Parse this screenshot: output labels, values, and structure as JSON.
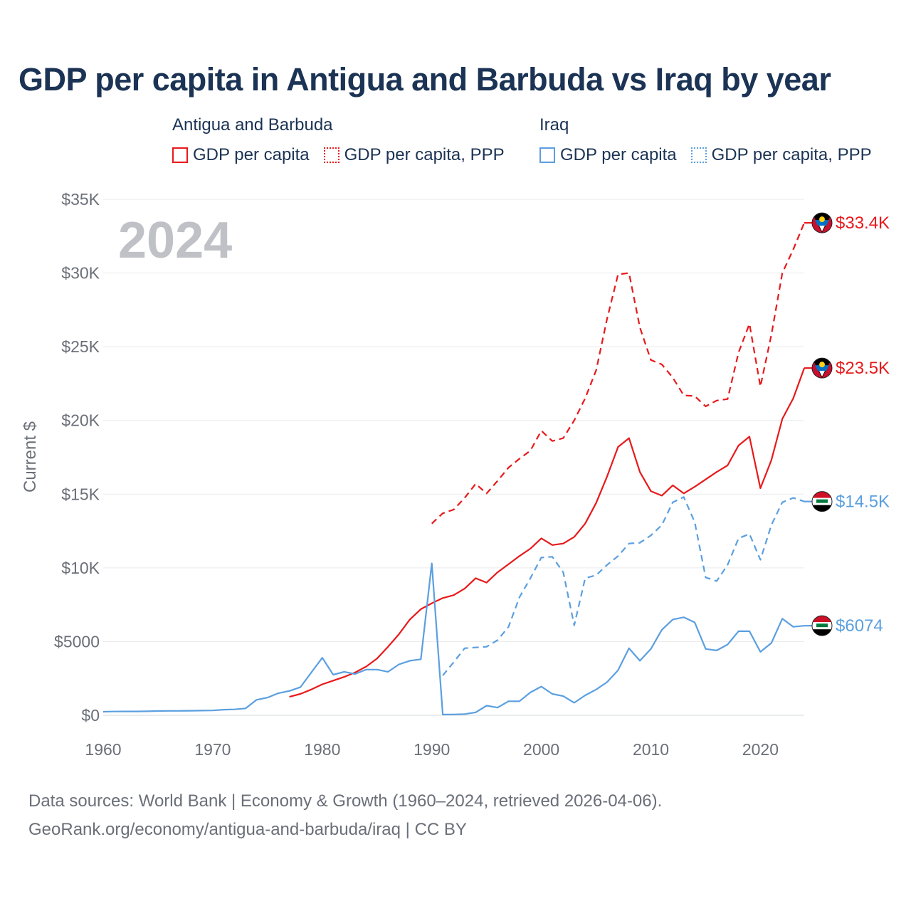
{
  "title": "GDP per capita in Antigua and Barbuda vs Iraq by year",
  "legend": {
    "groups": [
      {
        "name": "Antigua and Barbuda",
        "items": [
          {
            "label": "GDP per capita",
            "style": "solid",
            "color": "#e8191b"
          },
          {
            "label": "GDP per capita, PPP",
            "style": "dotted",
            "color": "#e8191b"
          }
        ]
      },
      {
        "name": "Iraq",
        "items": [
          {
            "label": "GDP per capita",
            "style": "solid",
            "color": "#5b9fe0"
          },
          {
            "label": "GDP per capita, PPP",
            "style": "dotted",
            "color": "#5b9fe0"
          }
        ]
      }
    ]
  },
  "footer": {
    "line1": "Data sources: World Bank | Economy & Growth (1960–2024, retrieved 2026-04-06).",
    "line2": "GeoRank.org/economy/antigua-and-barbuda/iraq | CC BY"
  },
  "chart_data": {
    "type": "line",
    "title": "GDP per capita in Antigua and Barbuda vs Iraq by year",
    "watermark_year": "2024",
    "xlabel": "",
    "ylabel": "Current $",
    "xlim": [
      1960,
      2024
    ],
    "ylim": [
      0,
      35000
    ],
    "x_ticks": [
      1960,
      1970,
      1980,
      1990,
      2000,
      2010,
      2020
    ],
    "y_ticks": [
      {
        "value": 0,
        "label": "$0"
      },
      {
        "value": 5000,
        "label": "$5000"
      },
      {
        "value": 10000,
        "label": "$10K"
      },
      {
        "value": 15000,
        "label": "$15K"
      },
      {
        "value": 20000,
        "label": "$20K"
      },
      {
        "value": 25000,
        "label": "$25K"
      },
      {
        "value": 30000,
        "label": "$30K"
      },
      {
        "value": 35000,
        "label": "$35K"
      }
    ],
    "grid": true,
    "series": [
      {
        "name": "Antigua and Barbuda GDP per capita",
        "country": "Antigua and Barbuda",
        "color": "#e8191b",
        "dash": "solid",
        "end_label": "$23.5K",
        "flag": "antigua",
        "x": [
          1977,
          1978,
          1979,
          1980,
          1981,
          1982,
          1983,
          1984,
          1985,
          1986,
          1987,
          1988,
          1989,
          1990,
          1991,
          1992,
          1993,
          1994,
          1995,
          1996,
          1997,
          1998,
          1999,
          2000,
          2001,
          2002,
          2003,
          2004,
          2005,
          2006,
          2007,
          2008,
          2009,
          2010,
          2011,
          2012,
          2013,
          2014,
          2015,
          2016,
          2017,
          2018,
          2019,
          2020,
          2021,
          2022,
          2023,
          2024
        ],
        "values": [
          1250,
          1450,
          1750,
          2100,
          2350,
          2600,
          2900,
          3300,
          3850,
          4650,
          5500,
          6500,
          7200,
          7600,
          7950,
          8150,
          8600,
          9300,
          9000,
          9700,
          10250,
          10800,
          11300,
          12000,
          11550,
          11650,
          12100,
          13000,
          14400,
          16200,
          18200,
          18800,
          16500,
          15200,
          14900,
          15600,
          15050,
          15500,
          16000,
          16500,
          16950,
          18300,
          18900,
          15400,
          17300,
          20100,
          21500,
          23550
        ]
      },
      {
        "name": "Antigua and Barbuda GDP per capita, PPP",
        "country": "Antigua and Barbuda",
        "color": "#e8191b",
        "dash": "dashed",
        "end_label": "$33.4K",
        "flag": "antigua",
        "x": [
          1990,
          1991,
          1992,
          1993,
          1994,
          1995,
          1996,
          1997,
          1998,
          1999,
          2000,
          2001,
          2002,
          2003,
          2004,
          2005,
          2006,
          2007,
          2008,
          2009,
          2010,
          2011,
          2012,
          2013,
          2014,
          2015,
          2016,
          2017,
          2018,
          2019,
          2020,
          2021,
          2022,
          2023,
          2024
        ],
        "values": [
          13000,
          13700,
          13950,
          14750,
          15700,
          15050,
          15900,
          16800,
          17400,
          17950,
          19300,
          18600,
          18800,
          20000,
          21500,
          23400,
          26900,
          29900,
          30000,
          26300,
          24100,
          23800,
          22900,
          21700,
          21650,
          20950,
          21350,
          21450,
          24600,
          26550,
          22300,
          25800,
          30000,
          31600,
          33400
        ]
      },
      {
        "name": "Iraq GDP per capita",
        "country": "Iraq",
        "color": "#5b9fe0",
        "dash": "solid",
        "end_label": "$6074",
        "flag": "iraq",
        "x": [
          1960,
          1961,
          1962,
          1963,
          1964,
          1965,
          1966,
          1967,
          1968,
          1969,
          1970,
          1971,
          1972,
          1973,
          1974,
          1975,
          1976,
          1977,
          1978,
          1979,
          1980,
          1981,
          1982,
          1983,
          1984,
          1985,
          1986,
          1987,
          1988,
          1989,
          1990,
          1991,
          1992,
          1993,
          1994,
          1995,
          1996,
          1997,
          1998,
          1999,
          2000,
          2001,
          2002,
          2003,
          2004,
          2005,
          2006,
          2007,
          2008,
          2009,
          2010,
          2011,
          2012,
          2013,
          2014,
          2015,
          2016,
          2017,
          2018,
          2019,
          2020,
          2021,
          2022,
          2023,
          2024
        ],
        "values": [
          240,
          255,
          260,
          260,
          270,
          290,
          300,
          300,
          310,
          320,
          330,
          380,
          400,
          470,
          1050,
          1200,
          1500,
          1650,
          1900,
          2900,
          3900,
          2750,
          2950,
          2800,
          3100,
          3100,
          2950,
          3450,
          3700,
          3800,
          10300,
          50,
          60,
          80,
          200,
          650,
          520,
          950,
          950,
          1550,
          1950,
          1450,
          1300,
          850,
          1350,
          1750,
          2250,
          3050,
          4550,
          3700,
          4500,
          5800,
          6500,
          6650,
          6300,
          4500,
          4400,
          4800,
          5700,
          5700,
          4300,
          4900,
          6550,
          6000,
          6074
        ]
      },
      {
        "name": "Iraq GDP per capita, PPP",
        "country": "Iraq",
        "color": "#5b9fe0",
        "dash": "dashed",
        "end_label": "$14.5K",
        "flag": "iraq",
        "x": [
          1991,
          1992,
          1993,
          1994,
          1995,
          1996,
          1997,
          1998,
          1999,
          2000,
          2001,
          2002,
          2003,
          2004,
          2005,
          2006,
          2007,
          2008,
          2009,
          2010,
          2011,
          2012,
          2013,
          2014,
          2015,
          2016,
          2017,
          2018,
          2019,
          2020,
          2021,
          2022,
          2023,
          2024
        ],
        "values": [
          2700,
          3600,
          4550,
          4600,
          4650,
          5100,
          6000,
          8000,
          9300,
          10700,
          10750,
          9700,
          6100,
          9300,
          9500,
          10200,
          10800,
          11650,
          11700,
          12200,
          12900,
          14450,
          14800,
          13100,
          9350,
          9100,
          10200,
          12000,
          12300,
          10550,
          12900,
          14450,
          14750,
          14500
        ]
      }
    ]
  }
}
